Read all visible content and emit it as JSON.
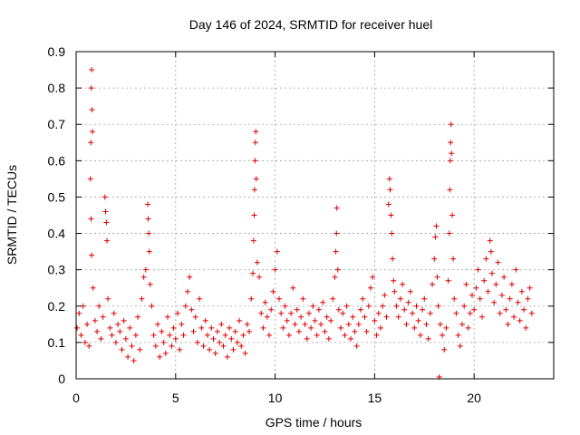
{
  "chart_data": {
    "type": "scatter",
    "title": "Day 146 of 2024, SRMTID for receiver huel",
    "xlabel": "GPS time / hours",
    "ylabel": "SRMTID / TECUs",
    "xlim": [
      0,
      24
    ],
    "ylim": [
      0,
      0.9
    ],
    "x_ticks": [
      0,
      5,
      10,
      15,
      20
    ],
    "x_tick_labels": [
      "0",
      "5",
      "10",
      "15",
      "20"
    ],
    "y_ticks": [
      0,
      0.1,
      0.2,
      0.3,
      0.4,
      0.5,
      0.6,
      0.7,
      0.8,
      0.9
    ],
    "y_tick_labels": [
      "0",
      "0.1",
      "0.2",
      "0.3",
      "0.4",
      "0.5",
      "0.6",
      "0.7",
      "0.8",
      "0.9"
    ],
    "grid": true,
    "marker": "+",
    "color": "#e00000",
    "series": [
      {
        "name": "SRMTID",
        "points": [
          [
            0.05,
            0.14
          ],
          [
            0.15,
            0.18
          ],
          [
            0.25,
            0.12
          ],
          [
            0.35,
            0.2
          ],
          [
            0.45,
            0.1
          ],
          [
            0.55,
            0.15
          ],
          [
            0.65,
            0.09
          ],
          [
            0.72,
            0.55
          ],
          [
            0.74,
            0.65
          ],
          [
            0.76,
            0.8
          ],
          [
            0.78,
            0.85
          ],
          [
            0.8,
            0.74
          ],
          [
            0.82,
            0.68
          ],
          [
            0.75,
            0.44
          ],
          [
            0.78,
            0.34
          ],
          [
            0.85,
            0.25
          ],
          [
            0.95,
            0.16
          ],
          [
            1.05,
            0.13
          ],
          [
            1.15,
            0.2
          ],
          [
            1.25,
            0.11
          ],
          [
            1.35,
            0.17
          ],
          [
            1.45,
            0.5
          ],
          [
            1.48,
            0.46
          ],
          [
            1.52,
            0.43
          ],
          [
            1.55,
            0.38
          ],
          [
            1.6,
            0.22
          ],
          [
            1.7,
            0.14
          ],
          [
            1.8,
            0.12
          ],
          [
            1.9,
            0.18
          ],
          [
            2.0,
            0.1
          ],
          [
            2.1,
            0.15
          ],
          [
            2.2,
            0.13
          ],
          [
            2.3,
            0.08
          ],
          [
            2.4,
            0.16
          ],
          [
            2.5,
            0.11
          ],
          [
            2.6,
            0.06
          ],
          [
            2.7,
            0.14
          ],
          [
            2.8,
            0.09
          ],
          [
            2.9,
            0.05
          ],
          [
            3.0,
            0.12
          ],
          [
            3.1,
            0.17
          ],
          [
            3.2,
            0.08
          ],
          [
            3.3,
            0.22
          ],
          [
            3.4,
            0.28
          ],
          [
            3.5,
            0.3
          ],
          [
            3.6,
            0.48
          ],
          [
            3.62,
            0.44
          ],
          [
            3.65,
            0.4
          ],
          [
            3.68,
            0.35
          ],
          [
            3.72,
            0.26
          ],
          [
            3.8,
            0.2
          ],
          [
            3.9,
            0.12
          ],
          [
            4.0,
            0.09
          ],
          [
            4.1,
            0.15
          ],
          [
            4.2,
            0.06
          ],
          [
            4.3,
            0.13
          ],
          [
            4.4,
            0.1
          ],
          [
            4.5,
            0.07
          ],
          [
            4.6,
            0.17
          ],
          [
            4.7,
            0.12
          ],
          [
            4.8,
            0.09
          ],
          [
            4.9,
            0.14
          ],
          [
            5.0,
            0.11
          ],
          [
            5.1,
            0.18
          ],
          [
            5.2,
            0.08
          ],
          [
            5.3,
            0.15
          ],
          [
            5.4,
            0.12
          ],
          [
            5.5,
            0.2
          ],
          [
            5.6,
            0.24
          ],
          [
            5.7,
            0.28
          ],
          [
            5.8,
            0.19
          ],
          [
            5.9,
            0.13
          ],
          [
            6.0,
            0.17
          ],
          [
            6.1,
            0.1
          ],
          [
            6.2,
            0.22
          ],
          [
            6.3,
            0.14
          ],
          [
            6.4,
            0.09
          ],
          [
            6.5,
            0.16
          ],
          [
            6.6,
            0.12
          ],
          [
            6.7,
            0.08
          ],
          [
            6.8,
            0.14
          ],
          [
            6.9,
            0.11
          ],
          [
            7.0,
            0.07
          ],
          [
            7.1,
            0.13
          ],
          [
            7.2,
            0.1
          ],
          [
            7.3,
            0.15
          ],
          [
            7.4,
            0.09
          ],
          [
            7.5,
            0.12
          ],
          [
            7.6,
            0.06
          ],
          [
            7.7,
            0.14
          ],
          [
            7.8,
            0.11
          ],
          [
            7.9,
            0.08
          ],
          [
            8.0,
            0.13
          ],
          [
            8.1,
            0.1
          ],
          [
            8.2,
            0.16
          ],
          [
            8.3,
            0.09
          ],
          [
            8.4,
            0.12
          ],
          [
            8.5,
            0.07
          ],
          [
            8.6,
            0.15
          ],
          [
            8.7,
            0.13
          ],
          [
            8.8,
            0.22
          ],
          [
            8.88,
            0.29
          ],
          [
            8.92,
            0.38
          ],
          [
            8.95,
            0.45
          ],
          [
            8.97,
            0.52
          ],
          [
            8.99,
            0.6
          ],
          [
            9.01,
            0.65
          ],
          [
            9.03,
            0.68
          ],
          [
            9.05,
            0.55
          ],
          [
            9.1,
            0.32
          ],
          [
            9.2,
            0.28
          ],
          [
            9.3,
            0.18
          ],
          [
            9.4,
            0.14
          ],
          [
            9.5,
            0.21
          ],
          [
            9.6,
            0.17
          ],
          [
            9.7,
            0.12
          ],
          [
            9.8,
            0.19
          ],
          [
            9.9,
            0.24
          ],
          [
            10.0,
            0.3
          ],
          [
            10.1,
            0.35
          ],
          [
            10.2,
            0.22
          ],
          [
            10.3,
            0.18
          ],
          [
            10.4,
            0.14
          ],
          [
            10.5,
            0.2
          ],
          [
            10.6,
            0.16
          ],
          [
            10.7,
            0.12
          ],
          [
            10.8,
            0.18
          ],
          [
            10.9,
            0.25
          ],
          [
            11.0,
            0.15
          ],
          [
            11.1,
            0.19
          ],
          [
            11.2,
            0.13
          ],
          [
            11.3,
            0.17
          ],
          [
            11.4,
            0.22
          ],
          [
            11.5,
            0.15
          ],
          [
            11.6,
            0.11
          ],
          [
            11.7,
            0.18
          ],
          [
            11.8,
            0.14
          ],
          [
            11.9,
            0.2
          ],
          [
            12.0,
            0.16
          ],
          [
            12.1,
            0.12
          ],
          [
            12.2,
            0.19
          ],
          [
            12.3,
            0.15
          ],
          [
            12.4,
            0.21
          ],
          [
            12.5,
            0.13
          ],
          [
            12.6,
            0.17
          ],
          [
            12.7,
            0.11
          ],
          [
            12.8,
            0.16
          ],
          [
            12.9,
            0.22
          ],
          [
            13.0,
            0.28
          ],
          [
            13.05,
            0.35
          ],
          [
            13.08,
            0.4
          ],
          [
            13.1,
            0.47
          ],
          [
            13.15,
            0.3
          ],
          [
            13.2,
            0.19
          ],
          [
            13.3,
            0.14
          ],
          [
            13.4,
            0.18
          ],
          [
            13.5,
            0.12
          ],
          [
            13.6,
            0.2
          ],
          [
            13.7,
            0.15
          ],
          [
            13.8,
            0.11
          ],
          [
            13.9,
            0.17
          ],
          [
            14.0,
            0.13
          ],
          [
            14.1,
            0.09
          ],
          [
            14.2,
            0.15
          ],
          [
            14.3,
            0.19
          ],
          [
            14.4,
            0.22
          ],
          [
            14.5,
            0.17
          ],
          [
            14.6,
            0.13
          ],
          [
            14.7,
            0.2
          ],
          [
            14.8,
            0.25
          ],
          [
            14.9,
            0.28
          ],
          [
            15.0,
            0.16
          ],
          [
            15.1,
            0.12
          ],
          [
            15.2,
            0.18
          ],
          [
            15.3,
            0.14
          ],
          [
            15.4,
            0.2
          ],
          [
            15.5,
            0.23
          ],
          [
            15.6,
            0.17
          ],
          [
            15.7,
            0.48
          ],
          [
            15.75,
            0.55
          ],
          [
            15.78,
            0.52
          ],
          [
            15.82,
            0.45
          ],
          [
            15.86,
            0.4
          ],
          [
            15.9,
            0.33
          ],
          [
            15.95,
            0.27
          ],
          [
            16.0,
            0.24
          ],
          [
            16.1,
            0.2
          ],
          [
            16.2,
            0.17
          ],
          [
            16.3,
            0.22
          ],
          [
            16.4,
            0.26
          ],
          [
            16.5,
            0.19
          ],
          [
            16.6,
            0.15
          ],
          [
            16.7,
            0.21
          ],
          [
            16.8,
            0.24
          ],
          [
            16.9,
            0.18
          ],
          [
            17.0,
            0.14
          ],
          [
            17.1,
            0.2
          ],
          [
            17.2,
            0.16
          ],
          [
            17.3,
            0.12
          ],
          [
            17.4,
            0.19
          ],
          [
            17.5,
            0.22
          ],
          [
            17.6,
            0.15
          ],
          [
            17.7,
            0.11
          ],
          [
            17.8,
            0.18
          ],
          [
            17.9,
            0.26
          ],
          [
            18.0,
            0.33
          ],
          [
            18.05,
            0.39
          ],
          [
            18.1,
            0.42
          ],
          [
            18.15,
            0.28
          ],
          [
            18.2,
            0.2
          ],
          [
            18.3,
            0.15
          ],
          [
            18.25,
            0.005
          ],
          [
            18.4,
            0.12
          ],
          [
            18.5,
            0.08
          ],
          [
            18.6,
            0.14
          ],
          [
            18.7,
            0.27
          ],
          [
            18.75,
            0.4
          ],
          [
            18.78,
            0.52
          ],
          [
            18.8,
            0.6
          ],
          [
            18.82,
            0.65
          ],
          [
            18.84,
            0.7
          ],
          [
            18.86,
            0.62
          ],
          [
            18.9,
            0.45
          ],
          [
            18.95,
            0.33
          ],
          [
            19.0,
            0.22
          ],
          [
            19.1,
            0.18
          ],
          [
            19.2,
            0.12
          ],
          [
            19.3,
            0.09
          ],
          [
            19.4,
            0.15
          ],
          [
            19.5,
            0.2
          ],
          [
            19.6,
            0.26
          ],
          [
            19.7,
            0.14
          ],
          [
            19.8,
            0.18
          ],
          [
            19.9,
            0.23
          ],
          [
            20.0,
            0.19
          ],
          [
            20.1,
            0.25
          ],
          [
            20.2,
            0.3
          ],
          [
            20.3,
            0.22
          ],
          [
            20.4,
            0.17
          ],
          [
            20.5,
            0.27
          ],
          [
            20.6,
            0.33
          ],
          [
            20.7,
            0.24
          ],
          [
            20.8,
            0.38
          ],
          [
            20.85,
            0.35
          ],
          [
            20.9,
            0.29
          ],
          [
            21.0,
            0.21
          ],
          [
            21.1,
            0.26
          ],
          [
            21.2,
            0.32
          ],
          [
            21.3,
            0.18
          ],
          [
            21.4,
            0.23
          ],
          [
            21.5,
            0.28
          ],
          [
            21.6,
            0.19
          ],
          [
            21.7,
            0.15
          ],
          [
            21.8,
            0.22
          ],
          [
            21.9,
            0.26
          ],
          [
            22.0,
            0.17
          ],
          [
            22.1,
            0.3
          ],
          [
            22.2,
            0.21
          ],
          [
            22.3,
            0.16
          ],
          [
            22.4,
            0.24
          ],
          [
            22.5,
            0.19
          ],
          [
            22.6,
            0.14
          ],
          [
            22.7,
            0.22
          ],
          [
            22.8,
            0.25
          ],
          [
            22.9,
            0.18
          ]
        ]
      }
    ]
  }
}
